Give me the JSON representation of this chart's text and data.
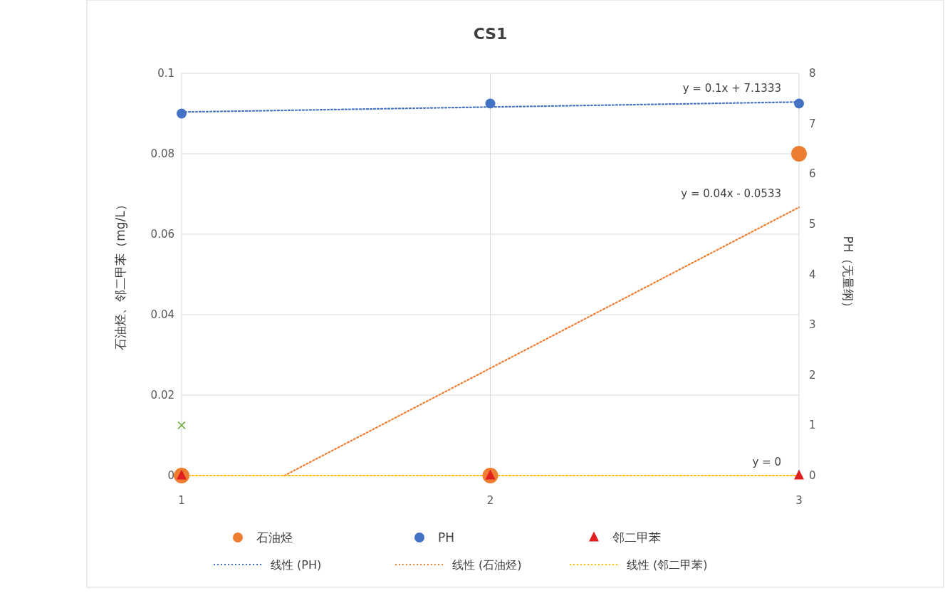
{
  "chart_data": {
    "type": "scatter",
    "title": "CS1",
    "ylabel": "石油烃、邻二甲苯（mg/L）",
    "y2label": "PH（无量纲）",
    "x": [
      1,
      2,
      3
    ],
    "xlim": [
      1,
      3
    ],
    "xticks": [
      1,
      2,
      3
    ],
    "ylim": [
      0,
      0.1
    ],
    "yticks": [
      0,
      0.02,
      0.04,
      0.06,
      0.08,
      0.1
    ],
    "y2lim": [
      0,
      8
    ],
    "y2ticks": [
      0,
      1,
      2,
      3,
      4,
      5,
      6,
      7,
      8
    ],
    "grid": true,
    "legend": "bottom",
    "series": [
      {
        "name": "石油烃",
        "color": "#ed7d31",
        "marker": "circle",
        "values": [
          0,
          0,
          0.08
        ]
      },
      {
        "name": "PH",
        "color": "#4472c4",
        "marker": "circle",
        "axis": "y2",
        "values": [
          7.2,
          7.4,
          7.4
        ]
      },
      {
        "name": "邻二甲苯",
        "color": "#e02020",
        "marker": "triangle",
        "values": [
          0,
          0,
          0
        ]
      },
      {
        "name": "线性 (PH)",
        "type": "line",
        "color": "#4472c4",
        "line_style": "dotted",
        "axis": "y2",
        "x": [
          1,
          3
        ],
        "values": [
          7.23,
          7.43
        ]
      },
      {
        "name": "线性 (石油烃)",
        "type": "line",
        "color": "#ed7d31",
        "line_style": "dotted",
        "x": [
          1.333,
          3
        ],
        "values": [
          0,
          0.0667
        ]
      },
      {
        "name": "线性 (邻二甲苯)",
        "type": "line",
        "color": "#ffc000",
        "line_style": "dotted",
        "x": [
          1,
          3
        ],
        "values": [
          0,
          0
        ]
      },
      {
        "color": "#70ad47",
        "marker": "cross",
        "axis": "y2",
        "x": [
          1
        ],
        "values": [
          1
        ]
      }
    ],
    "annotations": [
      "y = 0.1x + 7.1333",
      "y = 0.04x - 0.0533",
      "y = 0"
    ]
  }
}
